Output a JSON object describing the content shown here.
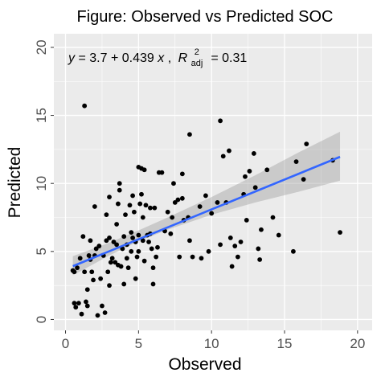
{
  "chart_data": {
    "type": "scatter",
    "title": "Figure: Observed vs Predicted SOC",
    "xlabel": "Observed",
    "ylabel": "Predicted",
    "xlim": [
      -0.8,
      21.0
    ],
    "ylim": [
      -0.8,
      21.0
    ],
    "x_ticks": [
      0,
      5,
      10,
      15,
      20
    ],
    "y_ticks": [
      0,
      5,
      10,
      15,
      20
    ],
    "grid": true,
    "annotation": {
      "y_var": "y",
      "equals": "= 3.7",
      "plus": "+",
      "slope": "0.439",
      "x_var": "x",
      "comma": ",",
      "r_symbol": "R",
      "r_sub": "adj",
      "r_sup": "2",
      "r_value": "= 0.31"
    },
    "fit": {
      "intercept": 3.7,
      "slope": 0.439,
      "x_range": [
        0.5,
        18.8
      ],
      "ci_band": [
        {
          "x": 0.5,
          "lower": 3.25,
          "upper": 4.65
        },
        {
          "x": 3.0,
          "lower": 4.7,
          "upper": 5.65
        },
        {
          "x": 5.0,
          "lower": 5.75,
          "upper": 6.55
        },
        {
          "x": 7.0,
          "lower": 6.6,
          "upper": 7.5
        },
        {
          "x": 10.0,
          "lower": 7.7,
          "upper": 9.0
        },
        {
          "x": 13.0,
          "lower": 8.6,
          "upper": 10.6
        },
        {
          "x": 16.0,
          "lower": 9.4,
          "upper": 12.3
        },
        {
          "x": 18.8,
          "lower": 10.2,
          "upper": 13.8
        }
      ]
    },
    "points": [
      [
        0.5,
        3.6
      ],
      [
        0.6,
        3.5
      ],
      [
        0.6,
        1.2
      ],
      [
        0.7,
        0.9
      ],
      [
        0.8,
        3.8
      ],
      [
        0.9,
        1.2
      ],
      [
        1.0,
        4.5
      ],
      [
        1.1,
        0.4
      ],
      [
        1.2,
        6.1
      ],
      [
        1.3,
        15.7
      ],
      [
        1.3,
        3.5
      ],
      [
        1.4,
        1.3
      ],
      [
        1.5,
        1.0
      ],
      [
        1.5,
        2.2
      ],
      [
        1.6,
        4.7
      ],
      [
        1.7,
        4.4
      ],
      [
        1.7,
        5.8
      ],
      [
        1.8,
        3.5
      ],
      [
        1.9,
        2.9
      ],
      [
        2.0,
        8.3
      ],
      [
        2.0,
        4.7
      ],
      [
        2.1,
        5.2
      ],
      [
        2.2,
        0.3
      ],
      [
        2.3,
        5.4
      ],
      [
        2.4,
        3.0
      ],
      [
        2.5,
        1.0
      ],
      [
        2.6,
        4.7
      ],
      [
        2.7,
        0.5
      ],
      [
        2.8,
        7.7
      ],
      [
        2.8,
        5.8
      ],
      [
        2.9,
        3.5
      ],
      [
        3.0,
        9.0
      ],
      [
        3.0,
        6.0
      ],
      [
        3.0,
        2.5
      ],
      [
        3.1,
        4.2
      ],
      [
        3.2,
        4.5
      ],
      [
        3.3,
        5.7
      ],
      [
        3.4,
        4.2
      ],
      [
        3.5,
        7.0
      ],
      [
        3.5,
        5.5
      ],
      [
        3.6,
        8.5
      ],
      [
        3.6,
        4.0
      ],
      [
        3.7,
        10.0
      ],
      [
        3.7,
        9.5
      ],
      [
        3.8,
        3.9
      ],
      [
        3.9,
        5.2
      ],
      [
        4.0,
        6.1
      ],
      [
        4.0,
        2.6
      ],
      [
        4.1,
        7.7
      ],
      [
        4.2,
        5.5
      ],
      [
        4.2,
        4.5
      ],
      [
        4.3,
        3.8
      ],
      [
        4.4,
        8.4
      ],
      [
        4.5,
        6.4
      ],
      [
        4.5,
        5.0
      ],
      [
        4.6,
        9.1
      ],
      [
        4.6,
        6.0
      ],
      [
        4.7,
        7.9
      ],
      [
        4.8,
        5.7
      ],
      [
        4.8,
        3.0
      ],
      [
        4.9,
        4.6
      ],
      [
        5.0,
        11.2
      ],
      [
        5.0,
        6.2
      ],
      [
        5.0,
        5.0
      ],
      [
        5.1,
        8.5
      ],
      [
        5.2,
        11.1
      ],
      [
        5.2,
        9.2
      ],
      [
        5.3,
        7.5
      ],
      [
        5.3,
        5.8
      ],
      [
        5.4,
        11.0
      ],
      [
        5.4,
        4.3
      ],
      [
        5.5,
        8.4
      ],
      [
        5.6,
        6.2
      ],
      [
        5.7,
        5.7
      ],
      [
        5.8,
        8.2
      ],
      [
        5.8,
        6.3
      ],
      [
        5.9,
        5.2
      ],
      [
        6.0,
        3.8
      ],
      [
        6.0,
        2.6
      ],
      [
        6.1,
        8.2
      ],
      [
        6.2,
        4.6
      ],
      [
        6.3,
        5.3
      ],
      [
        6.4,
        10.8
      ],
      [
        6.6,
        10.8
      ],
      [
        6.8,
        6.5
      ],
      [
        7.0,
        7.9
      ],
      [
        7.2,
        6.3
      ],
      [
        7.3,
        7.5
      ],
      [
        7.4,
        10.0
      ],
      [
        7.5,
        8.6
      ],
      [
        7.7,
        8.8
      ],
      [
        7.8,
        4.6
      ],
      [
        8.0,
        10.7
      ],
      [
        8.0,
        8.9
      ],
      [
        8.1,
        7.3
      ],
      [
        8.4,
        7.5
      ],
      [
        8.5,
        13.6
      ],
      [
        8.5,
        5.8
      ],
      [
        8.7,
        4.6
      ],
      [
        9.2,
        8.3
      ],
      [
        9.3,
        4.5
      ],
      [
        9.6,
        9.1
      ],
      [
        9.8,
        5.0
      ],
      [
        10.0,
        7.8
      ],
      [
        10.4,
        8.6
      ],
      [
        10.6,
        14.6
      ],
      [
        10.6,
        5.5
      ],
      [
        10.8,
        12.0
      ],
      [
        11.0,
        8.6
      ],
      [
        11.2,
        12.4
      ],
      [
        11.3,
        6.0
      ],
      [
        11.4,
        3.9
      ],
      [
        11.6,
        5.4
      ],
      [
        11.8,
        4.6
      ],
      [
        12.0,
        5.7
      ],
      [
        12.2,
        9.2
      ],
      [
        12.3,
        10.5
      ],
      [
        12.4,
        7.3
      ],
      [
        12.6,
        10.9
      ],
      [
        12.9,
        12.2
      ],
      [
        13.0,
        9.7
      ],
      [
        13.2,
        5.2
      ],
      [
        13.3,
        4.4
      ],
      [
        13.4,
        6.6
      ],
      [
        13.8,
        11.0
      ],
      [
        14.2,
        7.5
      ],
      [
        14.6,
        6.2
      ],
      [
        15.6,
        5.0
      ],
      [
        15.8,
        11.6
      ],
      [
        16.3,
        10.3
      ],
      [
        16.5,
        12.9
      ],
      [
        18.3,
        11.7
      ],
      [
        18.8,
        6.4
      ]
    ],
    "point_color": "#000000",
    "line_color": "#3366FF",
    "band_color": "#999999",
    "panel_bg": "#EBEBEB",
    "grid_color": "#FFFFFF"
  }
}
